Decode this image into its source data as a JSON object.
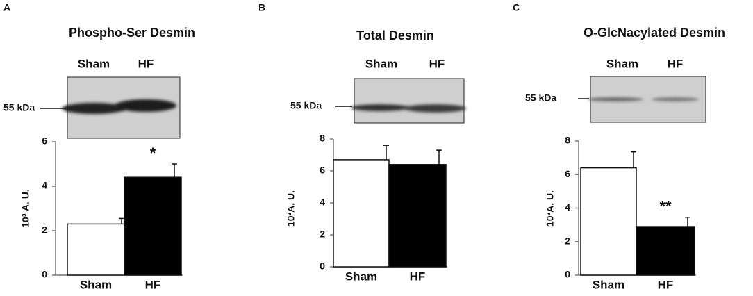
{
  "chart_data": [
    {
      "type": "bar",
      "panel": "A",
      "title": "Phospho-Ser Desmin",
      "blot": {
        "lanes": [
          "Sham",
          "HF"
        ],
        "marker": "55 kDa"
      },
      "categories": [
        "Sham",
        "HF"
      ],
      "values": [
        2.3,
        4.4
      ],
      "errors": [
        0.25,
        0.6
      ],
      "significance": [
        null,
        "*"
      ],
      "colors": [
        "#ffffff",
        "#000000"
      ],
      "ylabel": "10³ A. U.",
      "ylim": [
        0,
        6
      ],
      "yticks": [
        0,
        2,
        4,
        6
      ]
    },
    {
      "type": "bar",
      "panel": "B",
      "title": "Total Desmin",
      "blot": {
        "lanes": [
          "Sham",
          "HF"
        ],
        "marker": "55 kDa"
      },
      "categories": [
        "Sham",
        "HF"
      ],
      "values": [
        6.7,
        6.4
      ],
      "errors": [
        0.9,
        0.9
      ],
      "significance": [
        null,
        null
      ],
      "colors": [
        "#ffffff",
        "#000000"
      ],
      "ylabel": "10³A. U.",
      "ylim": [
        0,
        8
      ],
      "yticks": [
        0,
        2,
        4,
        6,
        8
      ]
    },
    {
      "type": "bar",
      "panel": "C",
      "title": "O-GlcNacylated Desmin",
      "blot": {
        "lanes": [
          "Sham",
          "HF"
        ],
        "marker": "55 kDa"
      },
      "categories": [
        "Sham",
        "HF"
      ],
      "values": [
        6.4,
        2.9
      ],
      "errors": [
        0.95,
        0.55
      ],
      "significance": [
        null,
        "**"
      ],
      "colors": [
        "#ffffff",
        "#000000"
      ],
      "ylabel": "10³A. U.",
      "ylim": [
        0,
        8
      ],
      "yticks": [
        0,
        2,
        4,
        6,
        8
      ]
    }
  ]
}
